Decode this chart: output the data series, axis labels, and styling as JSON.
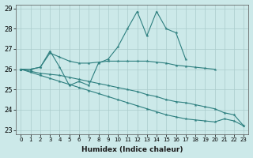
{
  "xlabel": "Humidex (Indice chaleur)",
  "xlim": [
    -0.5,
    23.5
  ],
  "ylim": [
    22.8,
    29.2
  ],
  "yticks": [
    23,
    24,
    25,
    26,
    27,
    28,
    29
  ],
  "xticks": [
    0,
    1,
    2,
    3,
    4,
    5,
    6,
    7,
    8,
    9,
    10,
    11,
    12,
    13,
    14,
    15,
    16,
    17,
    18,
    19,
    20,
    21,
    22,
    23
  ],
  "bg_color": "#cce9e9",
  "grid_color": "#aacccc",
  "line_color": "#2d7f7f",
  "lines": [
    {
      "x": [
        0,
        1,
        2,
        3,
        4,
        5,
        6,
        7,
        8,
        9,
        10,
        11,
        12,
        13,
        14,
        15,
        16,
        17
      ],
      "y": [
        26.0,
        26.0,
        26.1,
        26.9,
        26.1,
        25.2,
        25.4,
        25.2,
        26.3,
        26.5,
        27.1,
        28.0,
        28.85,
        27.65,
        28.85,
        28.0,
        27.8,
        26.5
      ]
    },
    {
      "x": [
        0,
        1,
        2,
        3,
        4,
        5,
        6,
        7,
        8,
        9,
        10,
        11,
        12,
        13,
        14,
        15,
        16,
        17,
        18,
        19,
        20
      ],
      "y": [
        26.0,
        26.0,
        26.1,
        26.8,
        26.6,
        26.4,
        26.3,
        26.3,
        26.35,
        26.4,
        26.4,
        26.4,
        26.4,
        26.4,
        26.35,
        26.3,
        26.2,
        26.15,
        26.1,
        26.05,
        26.0
      ]
    },
    {
      "x": [
        0,
        1,
        2,
        3,
        4,
        5,
        6,
        7,
        8,
        9,
        10,
        11,
        12,
        13,
        14,
        15,
        16,
        17,
        18,
        19,
        20,
        21,
        22,
        23
      ],
      "y": [
        26.0,
        25.9,
        25.8,
        25.75,
        25.7,
        25.6,
        25.5,
        25.4,
        25.3,
        25.2,
        25.1,
        25.0,
        24.9,
        24.75,
        24.65,
        24.5,
        24.4,
        24.35,
        24.25,
        24.15,
        24.05,
        23.85,
        23.75,
        23.2
      ]
    },
    {
      "x": [
        0,
        1,
        2,
        3,
        4,
        5,
        6,
        7,
        8,
        9,
        10,
        11,
        12,
        13,
        14,
        15,
        16,
        17,
        18,
        19,
        20,
        21,
        22,
        23
      ],
      "y": [
        26.0,
        25.85,
        25.7,
        25.55,
        25.4,
        25.25,
        25.1,
        24.95,
        24.8,
        24.65,
        24.5,
        24.35,
        24.2,
        24.05,
        23.9,
        23.75,
        23.65,
        23.55,
        23.5,
        23.45,
        23.4,
        23.55,
        23.45,
        23.2
      ]
    }
  ]
}
